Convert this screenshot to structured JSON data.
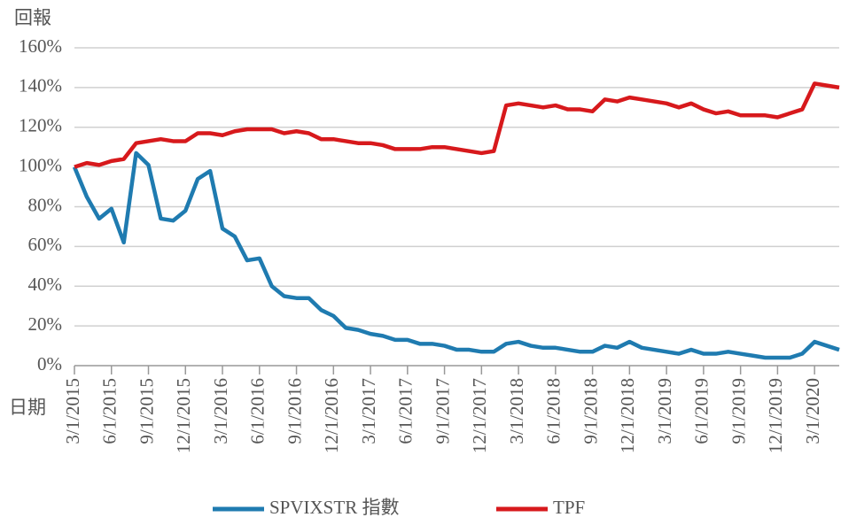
{
  "chart_data": {
    "type": "line",
    "y_label": "回報",
    "x_label": "日期",
    "categories": [
      "3/1/2015",
      null,
      null,
      "6/1/2015",
      null,
      null,
      "9/1/2015",
      null,
      null,
      "12/1/2015",
      null,
      null,
      "3/1/2016",
      null,
      null,
      "6/1/2016",
      null,
      null,
      "9/1/2016",
      null,
      null,
      "12/1/2016",
      null,
      null,
      "3/1/2017",
      null,
      null,
      "6/1/2017",
      null,
      null,
      "9/1/2017",
      null,
      null,
      "12/1/2017",
      null,
      null,
      "3/1/2018",
      null,
      null,
      "6/1/2018",
      null,
      null,
      "9/1/2018",
      null,
      null,
      "12/1/2018",
      null,
      null,
      "3/1/2019",
      null,
      null,
      "6/1/2019",
      null,
      null,
      "9/1/2019",
      null,
      null,
      "12/1/2019",
      null,
      null,
      "3/1/2020",
      null,
      null
    ],
    "series": [
      {
        "name": "SPVIXSTR 指數",
        "color": "#1f7bb0",
        "values": [
          100,
          85,
          74,
          79,
          62,
          107,
          101,
          74,
          73,
          78,
          94,
          98,
          69,
          65,
          53,
          54,
          40,
          35,
          34,
          34,
          28,
          25,
          19,
          18,
          16,
          15,
          13,
          13,
          11,
          11,
          10,
          8,
          8,
          7,
          7,
          11,
          12,
          10,
          9,
          9,
          8,
          7,
          7,
          10,
          9,
          12,
          9,
          8,
          7,
          6,
          8,
          6,
          6,
          7,
          6,
          5,
          4,
          4,
          4,
          6,
          12,
          10,
          8
        ]
      },
      {
        "name": "TPF",
        "color": "#d7191c",
        "values": [
          100,
          102,
          101,
          103,
          104,
          112,
          113,
          114,
          113,
          113,
          117,
          117,
          116,
          118,
          119,
          119,
          119,
          117,
          118,
          117,
          114,
          114,
          113,
          112,
          112,
          111,
          109,
          109,
          109,
          110,
          110,
          109,
          108,
          107,
          108,
          131,
          132,
          131,
          130,
          131,
          129,
          129,
          128,
          134,
          133,
          135,
          134,
          133,
          132,
          130,
          132,
          129,
          127,
          128,
          126,
          126,
          126,
          125,
          127,
          129,
          142,
          141,
          140
        ]
      }
    ],
    "ylim": [
      0,
      160
    ],
    "yticks": [
      {
        "value": 0,
        "label": "0%"
      },
      {
        "value": 20,
        "label": "20%"
      },
      {
        "value": 40,
        "label": "40%"
      },
      {
        "value": 60,
        "label": "60%"
      },
      {
        "value": 80,
        "label": "80%"
      },
      {
        "value": 100,
        "label": "100%"
      },
      {
        "value": 120,
        "label": "120%"
      },
      {
        "value": 140,
        "label": "140%"
      },
      {
        "value": 160,
        "label": "160%"
      }
    ],
    "grid": true,
    "legend": "bottom"
  }
}
